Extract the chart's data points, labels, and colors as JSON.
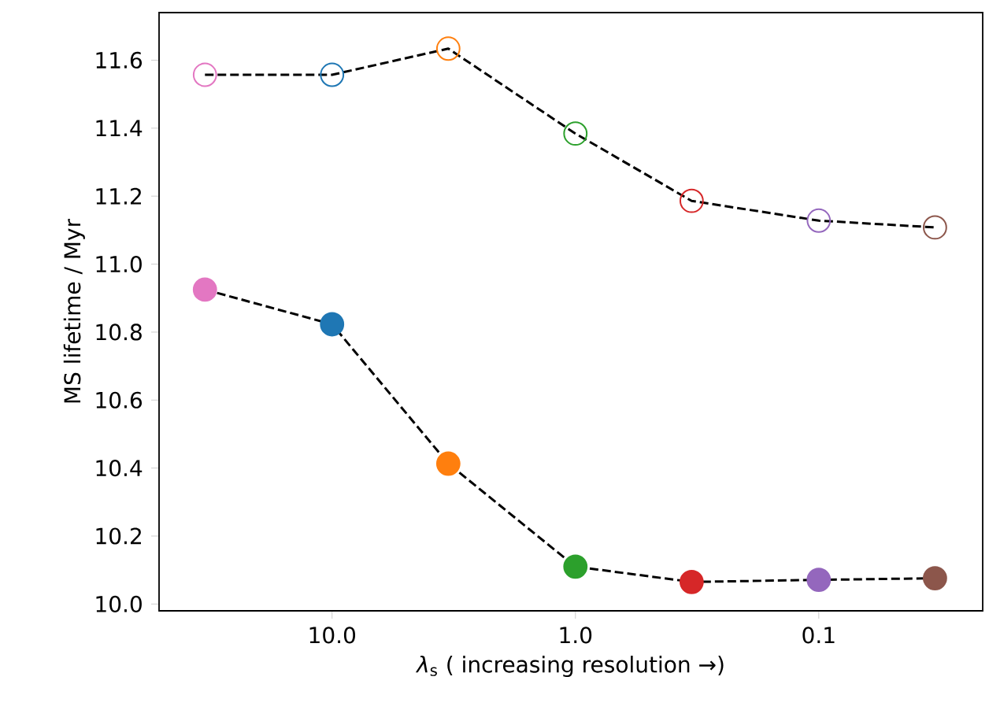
{
  "chart_data": {
    "type": "line",
    "xlabel": "*λ*$_{s}$ ( increasing resolution →)",
    "ylabel": "MS lifetime / Myr",
    "x": [
      33.3,
      10,
      3.33,
      1,
      0.333,
      0.1,
      0.0333
    ],
    "series": [
      {
        "color": "#000000",
        "colors": [
          "#e377c2",
          "#1f77b4",
          "#ff7f0e",
          "#2ca02c",
          "#d62728",
          "#9467bd",
          "#8c564b"
        ],
        "values": [
          11.557,
          11.557,
          11.634,
          11.384,
          11.186,
          11.128,
          11.108
        ]
      },
      {
        "color": "#000000",
        "colors": [
          "#e377c2",
          "#1f77b4",
          "#ff7f0e",
          "#2ca02c",
          "#d62728",
          "#9467bd",
          "#8c564b"
        ],
        "values": [
          10.925,
          10.823,
          10.413,
          10.11,
          10.065,
          10.071,
          10.076
        ]
      }
    ],
    "log": "x",
    "xlim": [
      51.4,
      0.0212
    ],
    "ylim": [
      9.98,
      11.74
    ],
    "xticks": [
      {
        "value": 10,
        "label": "10.0"
      },
      {
        "value": 1,
        "label": "1.0"
      },
      {
        "value": 0.1,
        "label": "0.1"
      }
    ],
    "yticks": [
      {
        "value": 10.0,
        "label": "10.0"
      },
      {
        "value": 10.2,
        "label": "10.2"
      },
      {
        "value": 10.4,
        "label": "10.4"
      },
      {
        "value": 10.6,
        "label": "10.6"
      },
      {
        "value": 10.8,
        "label": "10.8"
      },
      {
        "value": 11.0,
        "label": "11.0"
      },
      {
        "value": 11.2,
        "label": "11.2"
      },
      {
        "value": 11.4,
        "label": "11.4"
      },
      {
        "value": 11.6,
        "label": "11.6"
      }
    ],
    "grid": false,
    "marker": "circle",
    "line_style": "dashed"
  }
}
